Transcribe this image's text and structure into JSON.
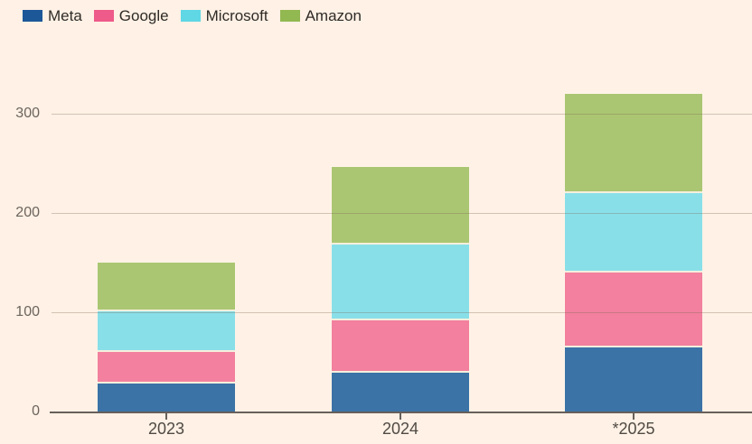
{
  "page": {
    "background_color": "#fff1e5",
    "gridline_color": "#d5c9bc",
    "axis_line_color": "#66605b",
    "axis_label_color": "#6c655e"
  },
  "chart_data": {
    "type": "bar",
    "stacked": true,
    "title": "",
    "xlabel": "",
    "ylabel": "",
    "categories": [
      "2023",
      "2024",
      "*2025"
    ],
    "series": [
      {
        "name": "Meta",
        "legend_color": "#1c5798",
        "bar_color": "#3b73a6",
        "values": [
          28,
          39,
          65
        ]
      },
      {
        "name": "Google",
        "legend_color": "#ee5a8a",
        "bar_color": "#f2809e",
        "values": [
          32,
          53,
          75
        ]
      },
      {
        "name": "Microsoft",
        "legend_color": "#5fd7e5",
        "bar_color": "#89dfe8",
        "values": [
          41,
          76,
          80
        ]
      },
      {
        "name": "Amazon",
        "legend_color": "#92b851",
        "bar_color": "#abc672",
        "values": [
          49,
          78,
          100
        ]
      }
    ],
    "totals": [
      150,
      246,
      320
    ],
    "yticks": [
      "0",
      "100",
      "200",
      "300"
    ],
    "ylim": [
      0,
      350
    ],
    "grid": true,
    "legend_position": "top-left"
  }
}
